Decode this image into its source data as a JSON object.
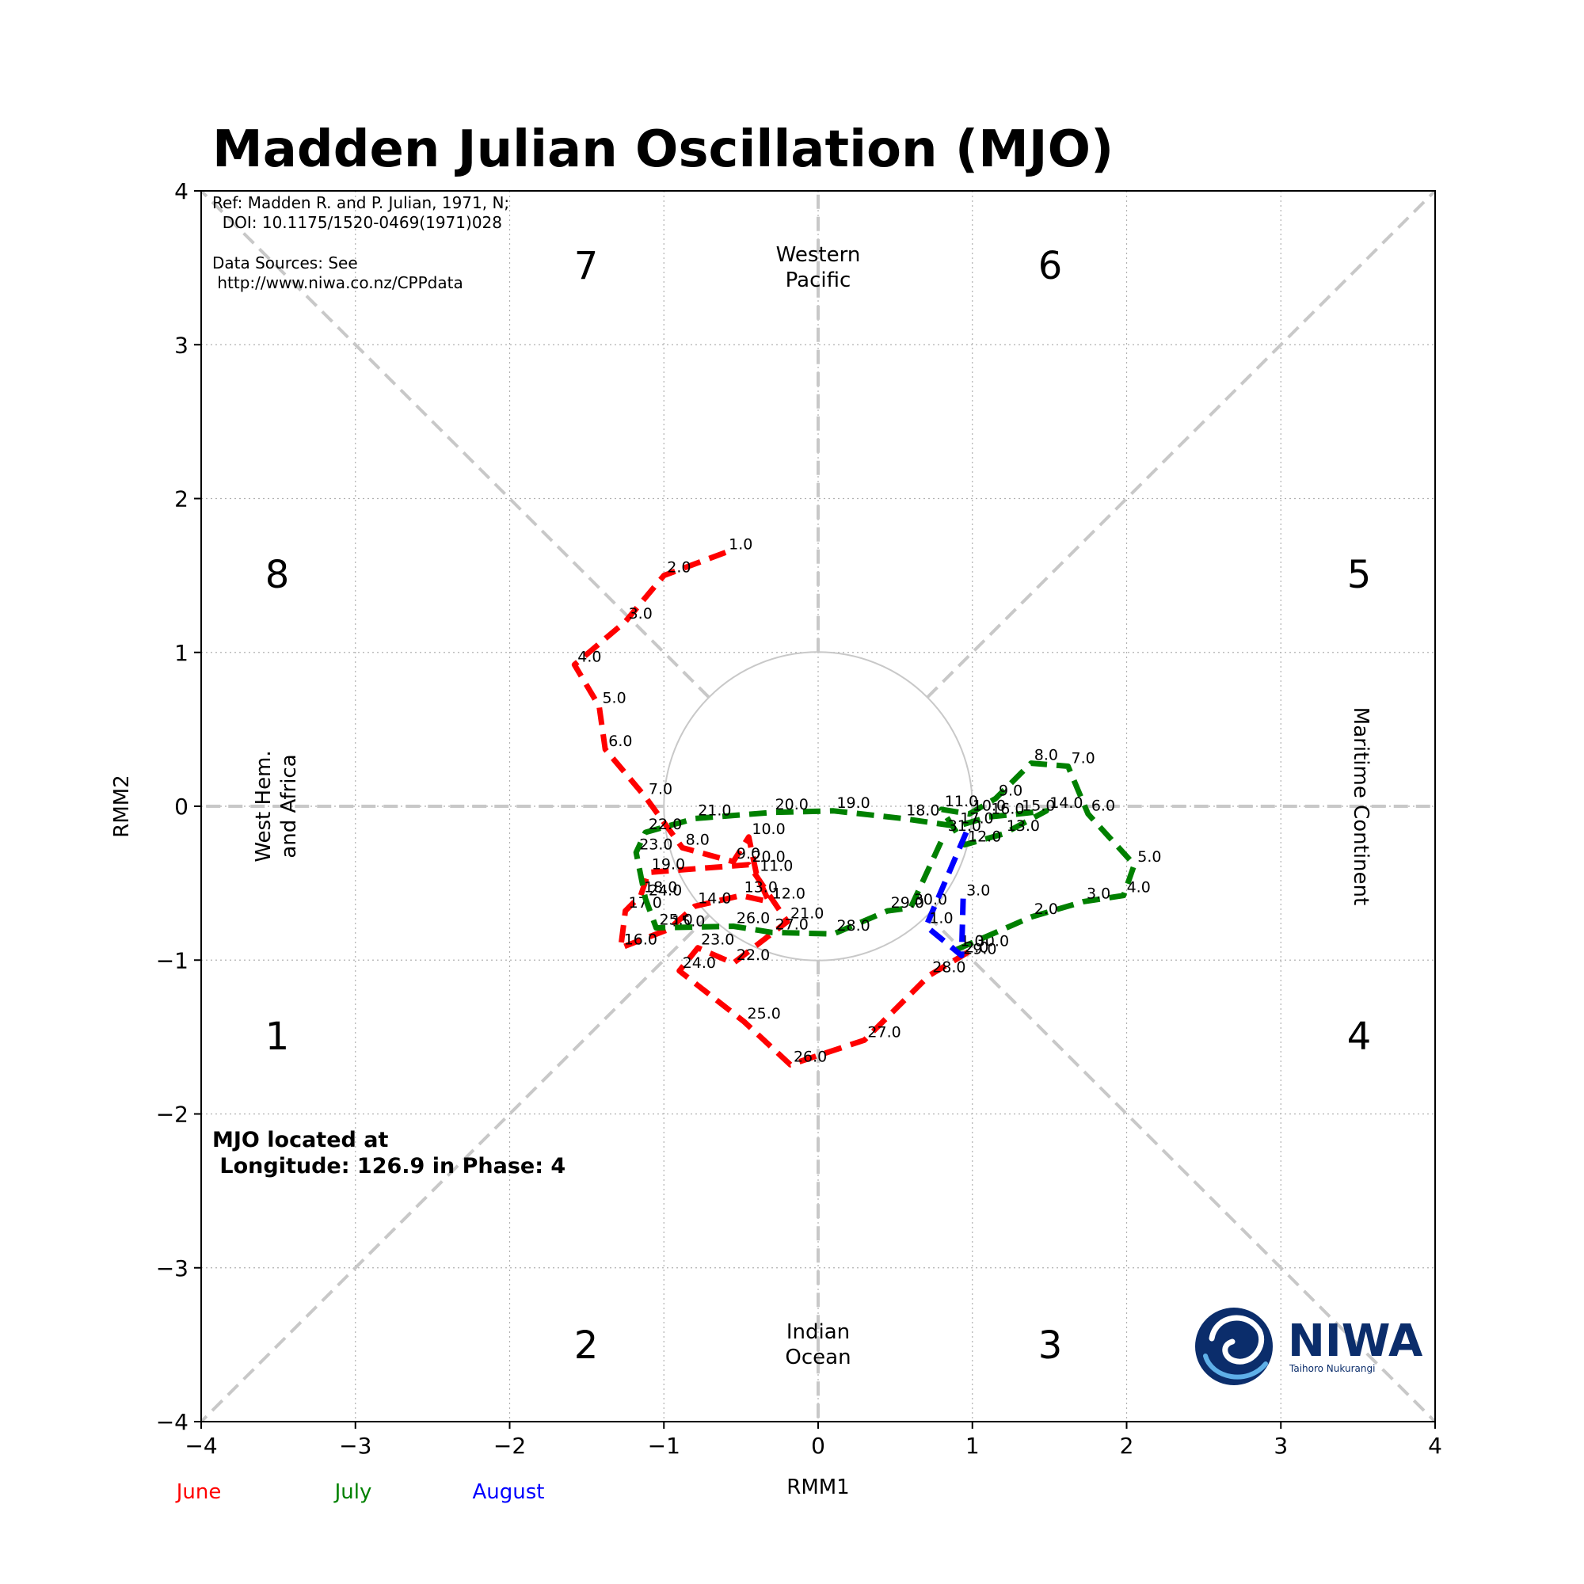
{
  "title": "Madden Julian Oscillation (MJO)",
  "reference": {
    "line1": "Ref: Madden R. and P. Julian, 1971, N;",
    "line2": "  DOI: 10.1175/1520-0469(1971)028",
    "line3": "Data Sources: See",
    "line4": " http://www.niwa.co.nz/CPPdata"
  },
  "status": {
    "line1": "MJO located at",
    "line2": " Longitude: 126.9 in Phase: 4"
  },
  "regions": {
    "top": [
      "Western",
      "Pacific"
    ],
    "bottom": [
      "Indian",
      "Ocean"
    ],
    "left": [
      "West Hem.",
      "and Africa"
    ],
    "right": "Maritime Continent"
  },
  "phases": [
    "1",
    "2",
    "3",
    "4",
    "5",
    "6",
    "7",
    "8"
  ],
  "logo": {
    "name": "NIWA",
    "tagline": "Taihoro Nukurangi"
  },
  "chart_data": {
    "type": "line",
    "xlabel": "RMM1",
    "ylabel": "RMM2",
    "xlim": [
      -4,
      4
    ],
    "ylim": [
      -4,
      4
    ],
    "xticks": [
      "−4",
      "−3",
      "−2",
      "−1",
      "0",
      "1",
      "2",
      "3",
      "4"
    ],
    "yticks": [
      "−4",
      "−3",
      "−2",
      "−1",
      "0",
      "1",
      "2",
      "3",
      "4"
    ],
    "grid": true,
    "series": [
      {
        "name": "June",
        "color": "#ff0000",
        "points": [
          {
            "label": "1.0",
            "x": -0.6,
            "y": 1.65
          },
          {
            "label": "2.0",
            "x": -1.0,
            "y": 1.5
          },
          {
            "label": "3.0",
            "x": -1.25,
            "y": 1.2
          },
          {
            "label": "4.0",
            "x": -1.58,
            "y": 0.92
          },
          {
            "label": "5.0",
            "x": -1.42,
            "y": 0.65
          },
          {
            "label": "6.0",
            "x": -1.38,
            "y": 0.37
          },
          {
            "label": "7.0",
            "x": -1.12,
            "y": 0.06
          },
          {
            "label": "8.0",
            "x": -0.88,
            "y": -0.27
          },
          {
            "label": "9.0",
            "x": -0.55,
            "y": -0.36
          },
          {
            "label": "10.0",
            "x": -0.45,
            "y": -0.2
          },
          {
            "label": "11.0",
            "x": -0.4,
            "y": -0.44
          },
          {
            "label": "12.0",
            "x": -0.32,
            "y": -0.62
          },
          {
            "label": "13.0",
            "x": -0.5,
            "y": -0.58
          },
          {
            "label": "14.0",
            "x": -0.8,
            "y": -0.65
          },
          {
            "label": "15.0",
            "x": -0.97,
            "y": -0.8
          },
          {
            "label": "16.0",
            "x": -1.28,
            "y": -0.92
          },
          {
            "label": "17.0",
            "x": -1.25,
            "y": -0.68
          },
          {
            "label": "18.0",
            "x": -1.15,
            "y": -0.58
          },
          {
            "label": "19.0",
            "x": -1.1,
            "y": -0.43
          },
          {
            "label": "20.0",
            "x": -0.45,
            "y": -0.38
          },
          {
            "label": "21.0",
            "x": -0.2,
            "y": -0.75
          },
          {
            "label": "22.0",
            "x": -0.55,
            "y": -1.02
          },
          {
            "label": "23.0",
            "x": -0.78,
            "y": -0.92
          },
          {
            "label": "24.0",
            "x": -0.9,
            "y": -1.07
          },
          {
            "label": "25.0",
            "x": -0.48,
            "y": -1.4
          },
          {
            "label": "26.0",
            "x": -0.18,
            "y": -1.68
          },
          {
            "label": "27.0",
            "x": 0.3,
            "y": -1.52
          },
          {
            "label": "28.0",
            "x": 0.72,
            "y": -1.1
          },
          {
            "label": "29.0",
            "x": 0.92,
            "y": -0.98
          },
          {
            "label": "30.0",
            "x": 1.0,
            "y": -0.93
          }
        ]
      },
      {
        "name": "July",
        "color": "#008000",
        "points": [
          {
            "label": "1.0",
            "x": 0.9,
            "y": -0.93
          },
          {
            "label": "2.0",
            "x": 1.38,
            "y": -0.72
          },
          {
            "label": "3.0",
            "x": 1.72,
            "y": -0.62
          },
          {
            "label": "4.0",
            "x": 1.98,
            "y": -0.58
          },
          {
            "label": "5.0",
            "x": 2.05,
            "y": -0.38
          },
          {
            "label": "6.0",
            "x": 1.75,
            "y": -0.05
          },
          {
            "label": "7.0",
            "x": 1.62,
            "y": 0.26
          },
          {
            "label": "8.0",
            "x": 1.38,
            "y": 0.28
          },
          {
            "label": "9.0",
            "x": 1.15,
            "y": 0.05
          },
          {
            "label": "10.0",
            "x": 0.98,
            "y": -0.05
          },
          {
            "label": "11.0",
            "x": 0.8,
            "y": -0.02
          },
          {
            "label": "12.0",
            "x": 0.95,
            "y": -0.25
          },
          {
            "label": "13.0",
            "x": 1.2,
            "y": -0.18
          },
          {
            "label": "14.0",
            "x": 1.48,
            "y": -0.03
          },
          {
            "label": "15.0",
            "x": 1.3,
            "y": -0.05
          },
          {
            "label": "16.0",
            "x": 1.1,
            "y": -0.07
          },
          {
            "label": "17.0",
            "x": 0.9,
            "y": -0.13
          },
          {
            "label": "18.0",
            "x": 0.55,
            "y": -0.08
          },
          {
            "label": "19.0",
            "x": 0.1,
            "y": -0.03
          },
          {
            "label": "20.0",
            "x": -0.3,
            "y": -0.04
          },
          {
            "label": "21.0",
            "x": -0.8,
            "y": -0.08
          },
          {
            "label": "22.0",
            "x": -1.12,
            "y": -0.17
          },
          {
            "label": "23.0",
            "x": -1.18,
            "y": -0.3
          },
          {
            "label": "24.0",
            "x": -1.12,
            "y": -0.6
          },
          {
            "label": "25.0",
            "x": -1.05,
            "y": -0.79
          },
          {
            "label": "26.0",
            "x": -0.55,
            "y": -0.78
          },
          {
            "label": "27.0",
            "x": -0.3,
            "y": -0.82
          },
          {
            "label": "28.0",
            "x": 0.1,
            "y": -0.83
          },
          {
            "label": "29.0",
            "x": 0.45,
            "y": -0.68
          },
          {
            "label": "30.0",
            "x": 0.6,
            "y": -0.66
          },
          {
            "label": "31.0",
            "x": 0.82,
            "y": -0.18
          }
        ]
      },
      {
        "name": "August",
        "color": "#0000ff",
        "points": [
          {
            "label": "",
            "x": 0.96,
            "y": -0.17
          },
          {
            "label": "1.0",
            "x": 0.7,
            "y": -0.78
          },
          {
            "label": "2.0",
            "x": 0.93,
            "y": -0.97
          },
          {
            "label": "3.0",
            "x": 0.94,
            "y": -0.6
          }
        ]
      }
    ]
  }
}
